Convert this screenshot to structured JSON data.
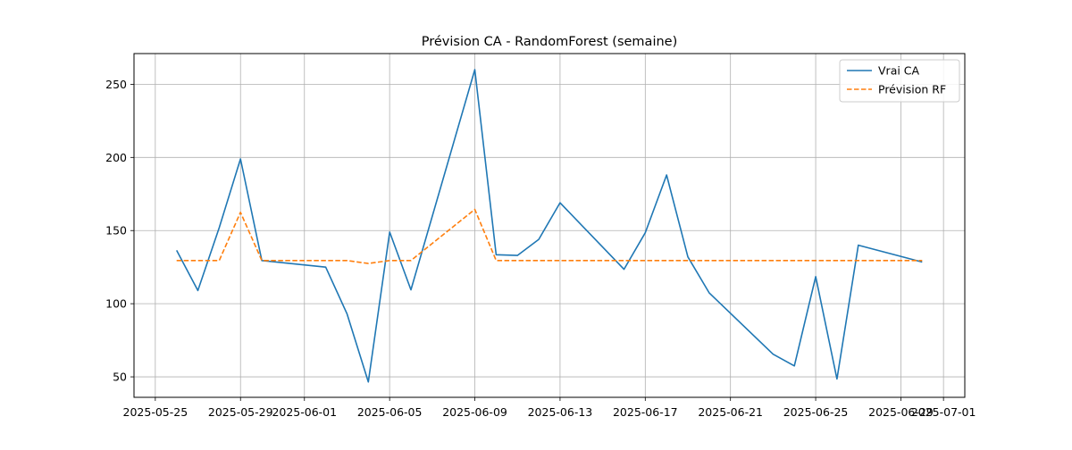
{
  "chart_data": {
    "type": "line",
    "title": "Prévision CA - RandomForest (semaine)",
    "xlabel": "",
    "ylabel": "",
    "x_type": "date",
    "xlim": [
      "2025-05-24",
      "2025-07-02"
    ],
    "ylim": [
      36,
      271
    ],
    "x_ticks": [
      "2025-05-25",
      "2025-05-29",
      "2025-06-01",
      "2025-06-05",
      "2025-06-09",
      "2025-06-13",
      "2025-06-17",
      "2025-06-21",
      "2025-06-25",
      "2025-06-29",
      "2025-07-01"
    ],
    "y_ticks": [
      50,
      100,
      150,
      200,
      250
    ],
    "grid": true,
    "legend_position": "top-right",
    "series": [
      {
        "name": "Vrai CA",
        "color": "#1f77b4",
        "style": "solid",
        "points": [
          {
            "x": "2025-05-26",
            "y": 136.5
          },
          {
            "x": "2025-05-27",
            "y": 109
          },
          {
            "x": "2025-05-28",
            "y": 152
          },
          {
            "x": "2025-05-29",
            "y": 199
          },
          {
            "x": "2025-05-30",
            "y": 129.5
          },
          {
            "x": "2025-06-02",
            "y": 125
          },
          {
            "x": "2025-06-03",
            "y": 93
          },
          {
            "x": "2025-06-04",
            "y": 46.5
          },
          {
            "x": "2025-06-05",
            "y": 149
          },
          {
            "x": "2025-06-06",
            "y": 109.5
          },
          {
            "x": "2025-06-09",
            "y": 260
          },
          {
            "x": "2025-06-10",
            "y": 133.5
          },
          {
            "x": "2025-06-11",
            "y": 133
          },
          {
            "x": "2025-06-12",
            "y": 144
          },
          {
            "x": "2025-06-13",
            "y": 169
          },
          {
            "x": "2025-06-16",
            "y": 123.5
          },
          {
            "x": "2025-06-17",
            "y": 148.5
          },
          {
            "x": "2025-06-18",
            "y": 188
          },
          {
            "x": "2025-06-19",
            "y": 132
          },
          {
            "x": "2025-06-20",
            "y": 107.5
          },
          {
            "x": "2025-06-23",
            "y": 65.5
          },
          {
            "x": "2025-06-24",
            "y": 57.5
          },
          {
            "x": "2025-06-25",
            "y": 118.5
          },
          {
            "x": "2025-06-26",
            "y": 48.5
          },
          {
            "x": "2025-06-27",
            "y": 140
          },
          {
            "x": "2025-06-30",
            "y": 128.5
          }
        ]
      },
      {
        "name": "Prévision RF",
        "color": "#ff7f0e",
        "style": "dashed",
        "points": [
          {
            "x": "2025-05-26",
            "y": 129.5
          },
          {
            "x": "2025-05-27",
            "y": 129.5
          },
          {
            "x": "2025-05-28",
            "y": 129.5
          },
          {
            "x": "2025-05-29",
            "y": 162.5
          },
          {
            "x": "2025-05-30",
            "y": 129.5
          },
          {
            "x": "2025-06-02",
            "y": 129.5
          },
          {
            "x": "2025-06-03",
            "y": 129.5
          },
          {
            "x": "2025-06-04",
            "y": 127.5
          },
          {
            "x": "2025-06-05",
            "y": 129.5
          },
          {
            "x": "2025-06-06",
            "y": 129.5
          },
          {
            "x": "2025-06-09",
            "y": 164.5
          },
          {
            "x": "2025-06-10",
            "y": 129.5
          },
          {
            "x": "2025-06-11",
            "y": 129.5
          },
          {
            "x": "2025-06-12",
            "y": 129.5
          },
          {
            "x": "2025-06-13",
            "y": 129.5
          },
          {
            "x": "2025-06-16",
            "y": 129.5
          },
          {
            "x": "2025-06-17",
            "y": 129.5
          },
          {
            "x": "2025-06-18",
            "y": 129.5
          },
          {
            "x": "2025-06-19",
            "y": 129.5
          },
          {
            "x": "2025-06-20",
            "y": 129.5
          },
          {
            "x": "2025-06-23",
            "y": 129.5
          },
          {
            "x": "2025-06-24",
            "y": 129.5
          },
          {
            "x": "2025-06-25",
            "y": 129.5
          },
          {
            "x": "2025-06-26",
            "y": 129.5
          },
          {
            "x": "2025-06-27",
            "y": 129.5
          },
          {
            "x": "2025-06-30",
            "y": 129.5
          }
        ]
      }
    ]
  }
}
